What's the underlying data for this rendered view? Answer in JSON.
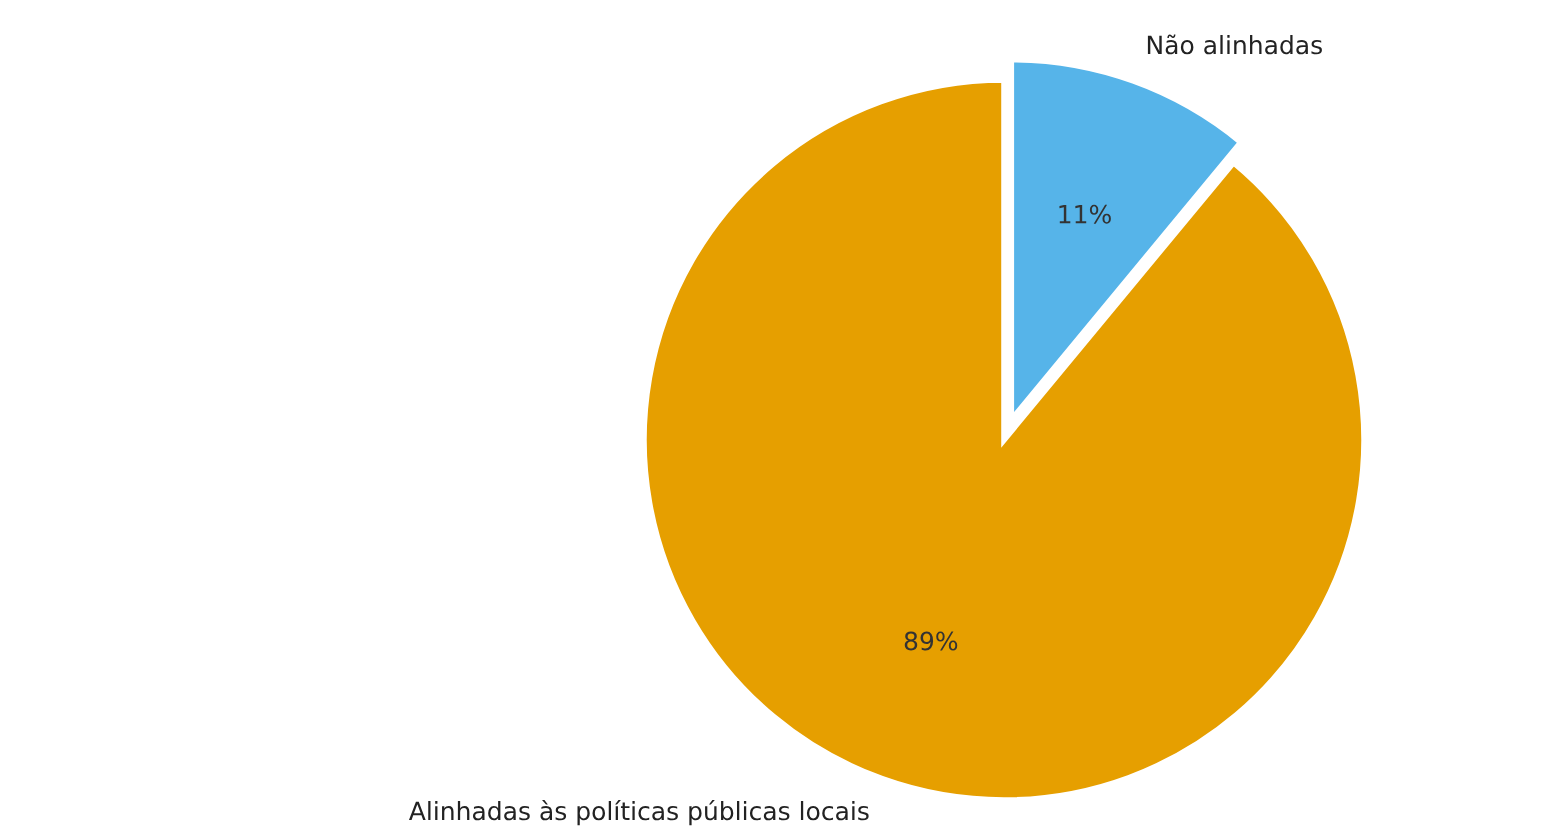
{
  "chart_data": {
    "type": "pie",
    "categories": [
      "Não alinhadas",
      "Alinhadas às políticas públicas locais"
    ],
    "values": [
      11,
      89
    ],
    "colors": [
      "#56b4e9",
      "#e69f00"
    ],
    "value_labels": [
      "11%",
      "89%"
    ]
  }
}
